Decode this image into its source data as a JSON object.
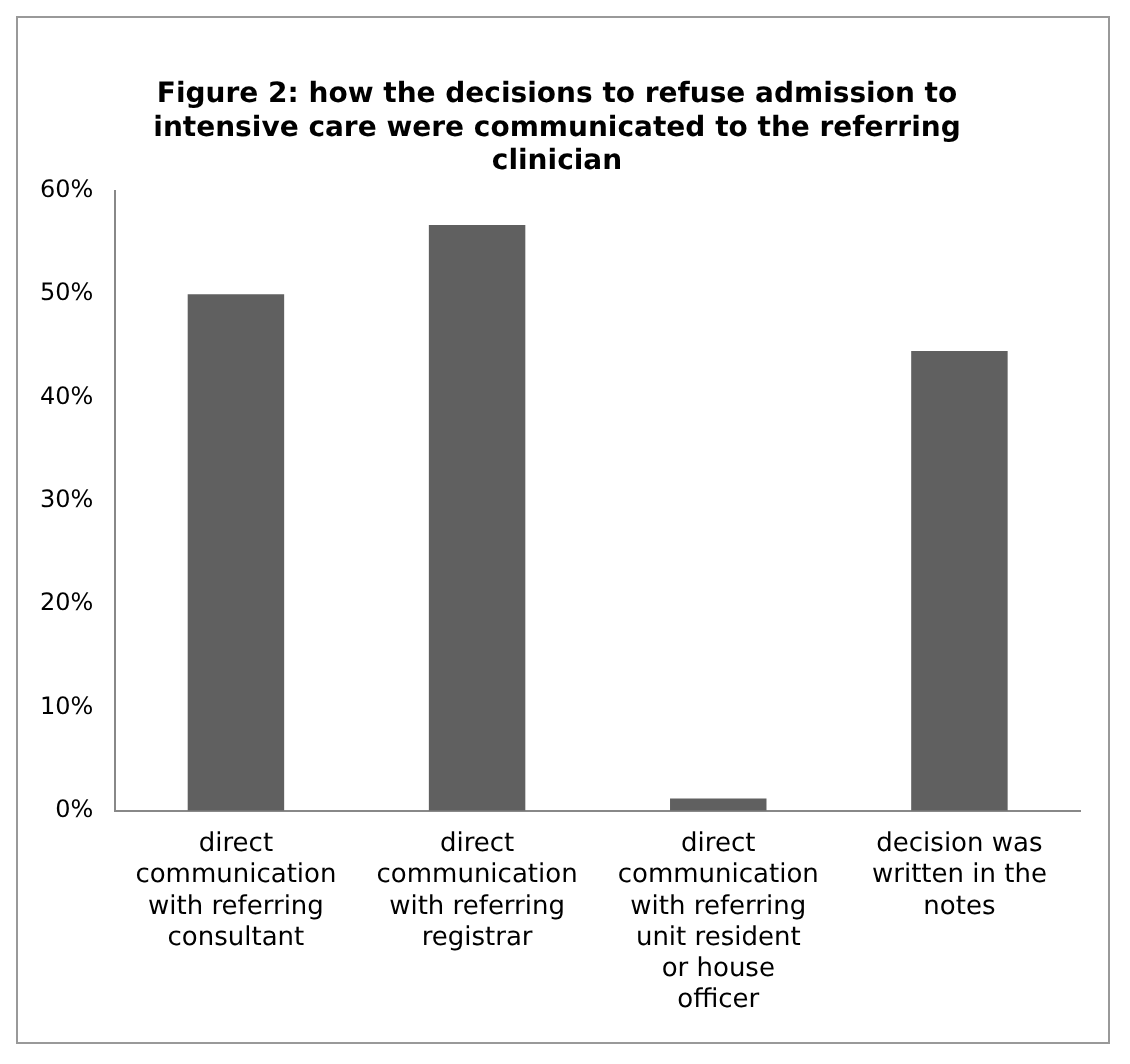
{
  "chart_data": {
    "type": "bar",
    "title": "Figure 2: how the decisions to refuse admission to intensive care were communicated to the referring clinician",
    "categories": [
      "direct communication with referring consultant",
      "direct communication with referring registrar",
      "direct communication with referring unit resident or house officer",
      "decision was written in the notes"
    ],
    "values": [
      50,
      56.7,
      1.2,
      44.5
    ],
    "color": "#606060",
    "ylim": [
      0,
      60
    ],
    "yticks": [
      {
        "value": 0,
        "label": "0%"
      },
      {
        "value": 10,
        "label": "10%"
      },
      {
        "value": 20,
        "label": "20%"
      },
      {
        "value": 30,
        "label": "30%"
      },
      {
        "value": 40,
        "label": "40%"
      },
      {
        "value": 50,
        "label": "50%"
      },
      {
        "value": 60,
        "label": "60%"
      }
    ],
    "grid": false,
    "legend": false
  }
}
